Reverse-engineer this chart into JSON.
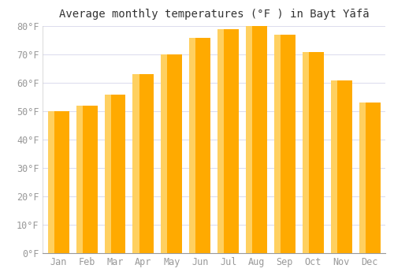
{
  "months": [
    "Jan",
    "Feb",
    "Mar",
    "Apr",
    "May",
    "Jun",
    "Jul",
    "Aug",
    "Sep",
    "Oct",
    "Nov",
    "Dec"
  ],
  "values": [
    50,
    52,
    56,
    63,
    70,
    76,
    79,
    80,
    77,
    71,
    61,
    53
  ],
  "bar_color_main": "#FFAA00",
  "bar_color_light": "#FFD060",
  "title": "Average monthly temperatures (°F ) in Bayt Yāfā",
  "ylim": [
    0,
    80
  ],
  "yticks": [
    0,
    10,
    20,
    30,
    40,
    50,
    60,
    70,
    80
  ],
  "ytick_labels": [
    "0°F",
    "10°F",
    "20°F",
    "30°F",
    "40°F",
    "50°F",
    "60°F",
    "70°F",
    "80°F"
  ],
  "background_color": "#ffffff",
  "plot_bg_color": "#ffffff",
  "title_fontsize": 10,
  "tick_fontsize": 8.5,
  "grid_color": "#ddddee",
  "bar_width": 0.75
}
